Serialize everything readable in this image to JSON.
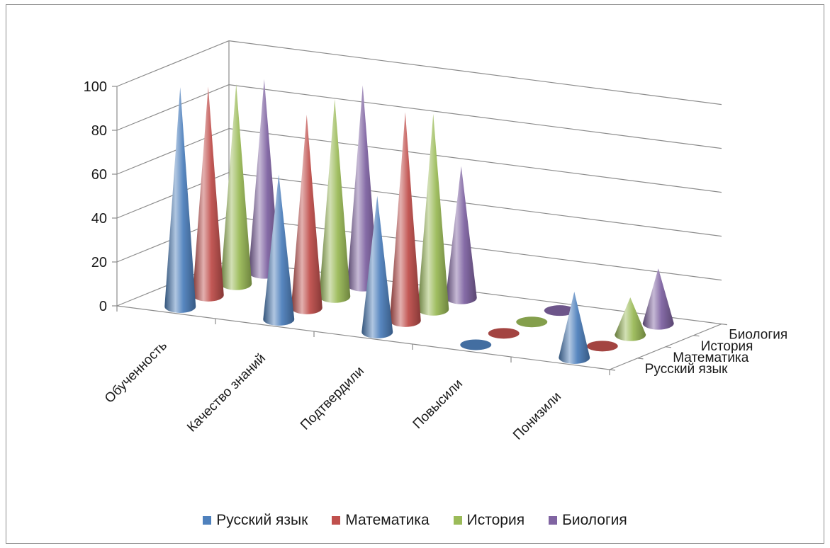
{
  "chart_data": {
    "type": "bar",
    "subtype": "3d-cone",
    "title": "",
    "categories": [
      "Обученность",
      "Качество знаний",
      "Подтвердили",
      "Повысили",
      "Понизили"
    ],
    "series": [
      {
        "name": "Русский язык",
        "color": "#4f81bd",
        "values": [
          100,
          66,
          62,
          0,
          30
        ]
      },
      {
        "name": "Математика",
        "color": "#c0504d",
        "values": [
          95,
          88,
          95,
          0,
          0
        ]
      },
      {
        "name": "История",
        "color": "#9bbb59",
        "values": [
          91,
          90,
          89,
          0,
          17
        ]
      },
      {
        "name": "Биология",
        "color": "#8064a2",
        "values": [
          88,
          91,
          60,
          0,
          25
        ]
      }
    ],
    "y_axis": {
      "min": 0,
      "max": 100,
      "ticks": [
        "0",
        "20",
        "40",
        "60",
        "80",
        "100"
      ]
    },
    "depth_axis_labels": [
      "Русский язык",
      "Математика",
      "История",
      "Биология"
    ],
    "grid": true,
    "legend_position": "bottom"
  }
}
